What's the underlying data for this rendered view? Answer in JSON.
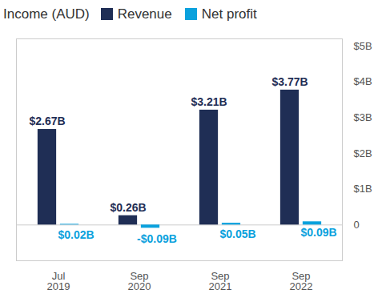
{
  "chart_data": {
    "type": "bar",
    "title": "Income (AUD)",
    "categories": [
      "Jul 2019",
      "Sep 2020",
      "Sep 2021",
      "Sep 2022"
    ],
    "series": [
      {
        "name": "Revenue",
        "color": "#1f2e55",
        "values": [
          2.67,
          0.26,
          3.21,
          3.77
        ],
        "value_labels": [
          "$2.67B",
          "$0.26B",
          "$3.21B",
          "$3.77B"
        ]
      },
      {
        "name": "Net profit",
        "color": "#0aa1dd",
        "values": [
          0.02,
          -0.09,
          0.05,
          0.09
        ],
        "value_labels": [
          "$0.02B",
          "-$0.09B",
          "$0.05B",
          "$0.09B"
        ]
      }
    ],
    "ylim": [
      -1,
      5.2
    ],
    "yticks": [
      0,
      {
        "value": 1,
        "label": "$1B"
      },
      {
        "value": 2,
        "label": "$2B"
      },
      {
        "value": 3,
        "label": "$3B"
      },
      {
        "value": 4,
        "label": "$4B"
      },
      {
        "value": 5,
        "label": "$5B"
      }
    ],
    "grid": false,
    "data_labels": true,
    "legend": "top"
  }
}
